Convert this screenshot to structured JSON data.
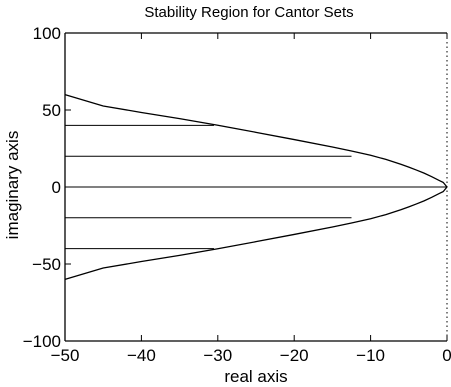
{
  "chart_data": {
    "type": "line",
    "title": "Stability Region for Cantor Sets",
    "xlabel": "real axis",
    "ylabel": "imaginary axis",
    "xlim": [
      -50,
      0
    ],
    "ylim": [
      -100,
      100
    ],
    "grid": false,
    "xticks": [
      {
        "value": -50,
        "label": "−50"
      },
      {
        "value": -40,
        "label": "−40"
      },
      {
        "value": -30,
        "label": "−30"
      },
      {
        "value": -20,
        "label": "−20"
      },
      {
        "value": -10,
        "label": "−10"
      },
      {
        "value": 0,
        "label": "0"
      }
    ],
    "yticks": [
      {
        "value": -100,
        "label": "−100"
      },
      {
        "value": -50,
        "label": "−50"
      },
      {
        "value": 0,
        "label": "0"
      },
      {
        "value": 50,
        "label": "50"
      },
      {
        "value": 100,
        "label": "100"
      }
    ],
    "series": [
      {
        "kind": "boundary",
        "x": [
          0,
          -0.5,
          -1,
          -2,
          -3,
          -4,
          -5,
          -6,
          -8,
          -10,
          -12.5,
          -15,
          -20,
          -25,
          -30,
          -35,
          -40,
          -45,
          -50
        ],
        "y_upper": [
          0,
          3,
          4.2,
          6.7,
          9,
          11,
          12.9,
          14.7,
          17.9,
          20.6,
          23.4,
          26.0,
          30.8,
          35.5,
          40.1,
          44.4,
          48.4,
          52.6,
          60.0
        ],
        "y_lower": [
          0,
          -3,
          -4.2,
          -6.7,
          -9,
          -11,
          -12.9,
          -14.7,
          -17.9,
          -20.6,
          -23.4,
          -26.0,
          -30.8,
          -35.5,
          -40.1,
          -44.4,
          -48.4,
          -52.6,
          -60.0
        ]
      }
    ],
    "segments": [
      {
        "x": [
          -50,
          -30.5
        ],
        "y": [
          40,
          40
        ]
      },
      {
        "x": [
          -50,
          -12.5
        ],
        "y": [
          20,
          20
        ]
      },
      {
        "x": [
          -50,
          0
        ],
        "y": [
          0,
          0
        ]
      },
      {
        "x": [
          -50,
          -12.5
        ],
        "y": [
          -20,
          -20
        ]
      },
      {
        "x": [
          -50,
          -30.5
        ],
        "y": [
          -40,
          -40
        ]
      }
    ],
    "reference_line": {
      "x": 0,
      "style": "dotted"
    }
  }
}
